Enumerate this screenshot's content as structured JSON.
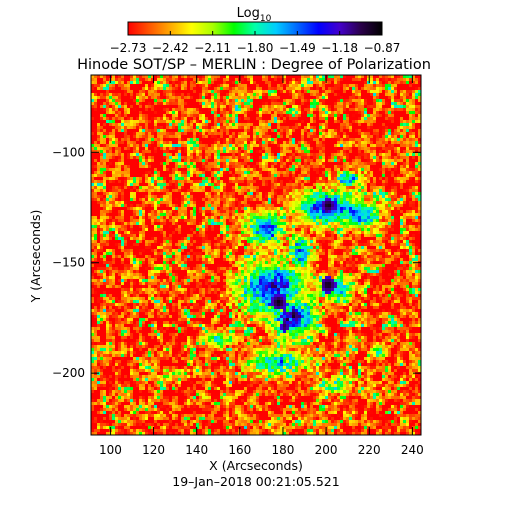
{
  "chart_data": {
    "type": "heatmap",
    "title": "Hinode SOT/SP – MERLIN : Degree of Polarization",
    "xlabel": "X (Arcseconds)",
    "ylabel": "Y (Arcseconds)",
    "timestamp": "19–Jan–2018 00:21:05.521",
    "xlim": [
      91,
      244
    ],
    "ylim": [
      -228,
      -65
    ],
    "x_ticks": [
      100,
      120,
      140,
      160,
      180,
      200,
      220,
      240
    ],
    "x_tick_labels": [
      "100",
      "120",
      "140",
      "160",
      "180",
      "200",
      "220",
      "240"
    ],
    "y_ticks": [
      -100,
      -150,
      -200
    ],
    "y_tick_labels": [
      "−100",
      "−150",
      "−200"
    ],
    "colorbar": {
      "title_base": "Log",
      "title_sub": "10",
      "range": [
        -2.73,
        -0.87
      ],
      "ticks": [
        -2.73,
        -2.42,
        -2.11,
        -1.8,
        -1.49,
        -1.18,
        -0.87
      ],
      "tick_labels": [
        "−2.73",
        "−2.42",
        "−2.11",
        "−1.80",
        "−1.49",
        "−1.18",
        "−0.87"
      ],
      "colors": [
        "#ff0000",
        "#ff5500",
        "#ffaa00",
        "#ffff00",
        "#aaff00",
        "#00ff00",
        "#00ffaa",
        "#00ccff",
        "#0066ff",
        "#0000ff",
        "#4400cc",
        "#2a004a",
        "#000000"
      ]
    },
    "background_level": -2.6,
    "regions": [
      {
        "x": 175,
        "y": -162,
        "rx": 18,
        "ry": 14,
        "level": -1.3
      },
      {
        "x": 185,
        "y": -175,
        "rx": 12,
        "ry": 10,
        "level": -1.25
      },
      {
        "x": 200,
        "y": -125,
        "rx": 18,
        "ry": 9,
        "level": -1.35
      },
      {
        "x": 215,
        "y": -128,
        "rx": 12,
        "ry": 8,
        "level": -1.4
      },
      {
        "x": 172,
        "y": -135,
        "rx": 12,
        "ry": 9,
        "level": -1.45
      },
      {
        "x": 188,
        "y": -145,
        "rx": 8,
        "ry": 10,
        "level": -1.55
      },
      {
        "x": 178,
        "y": -195,
        "rx": 22,
        "ry": 9,
        "level": -1.7
      },
      {
        "x": 210,
        "y": -112,
        "rx": 10,
        "ry": 6,
        "level": -1.7
      },
      {
        "x": 205,
        "y": -162,
        "rx": 10,
        "ry": 8,
        "level": -1.55
      },
      {
        "x": 150,
        "y": -185,
        "rx": 12,
        "ry": 6,
        "level": -1.85
      },
      {
        "x": 130,
        "y": -200,
        "rx": 14,
        "ry": 4,
        "level": -2.0
      },
      {
        "x": 205,
        "y": -205,
        "rx": 14,
        "ry": 7,
        "level": -1.9
      },
      {
        "x": 225,
        "y": -190,
        "rx": 8,
        "ry": 6,
        "level": -2.0
      }
    ],
    "dark_spots": [
      {
        "x": 201,
        "y": -160,
        "r": 3.6,
        "level": -0.87
      },
      {
        "x": 201,
        "y": -124,
        "r": 3.0,
        "level": -0.87
      },
      {
        "x": 178,
        "y": -168,
        "r": 3.6,
        "level": -0.87
      },
      {
        "x": 181,
        "y": -179,
        "r": 2.4,
        "level": -0.95
      }
    ]
  }
}
